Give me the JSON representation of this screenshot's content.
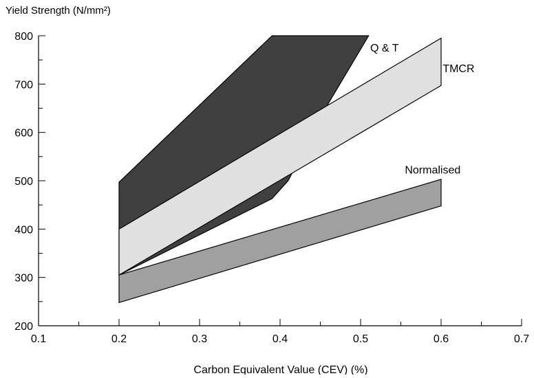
{
  "chart_data": {
    "type": "area",
    "title": "",
    "ylabel": "Yield Strength (N/mm²)",
    "xlabel": "Carbon Equivalent Value (CEV) (%)",
    "xlim": [
      0.1,
      0.7
    ],
    "ylim": [
      200,
      800
    ],
    "x_ticks": [
      0.1,
      0.2,
      0.3,
      0.4,
      0.5,
      0.6,
      0.7
    ],
    "y_ticks": [
      200,
      300,
      400,
      500,
      600,
      700,
      800
    ],
    "x_tick_labels": [
      "0.1",
      "0.2",
      "0.3",
      "0.4",
      "0.5",
      "0.6",
      "0.7"
    ],
    "y_tick_labels": [
      "200",
      "300",
      "400",
      "500",
      "600",
      "700",
      "800"
    ],
    "x_minor_step": 0.05,
    "y_minor_step": 50,
    "grid": false,
    "series": [
      {
        "name": "Q & T",
        "color": "#404040",
        "points": [
          [
            0.2,
            497
          ],
          [
            0.39,
            800
          ],
          [
            0.51,
            800
          ],
          [
            0.46,
            660
          ],
          [
            0.41,
            500
          ],
          [
            0.39,
            463
          ],
          [
            0.2,
            305
          ]
        ]
      },
      {
        "name": "TMCR",
        "color": "#e0e0e0",
        "points": [
          [
            0.2,
            400
          ],
          [
            0.6,
            795
          ],
          [
            0.6,
            697
          ],
          [
            0.2,
            305
          ]
        ]
      },
      {
        "name": "Normalised",
        "color": "#a0a0a0",
        "points": [
          [
            0.2,
            305
          ],
          [
            0.6,
            503
          ],
          [
            0.6,
            448
          ],
          [
            0.2,
            248
          ]
        ]
      }
    ]
  }
}
